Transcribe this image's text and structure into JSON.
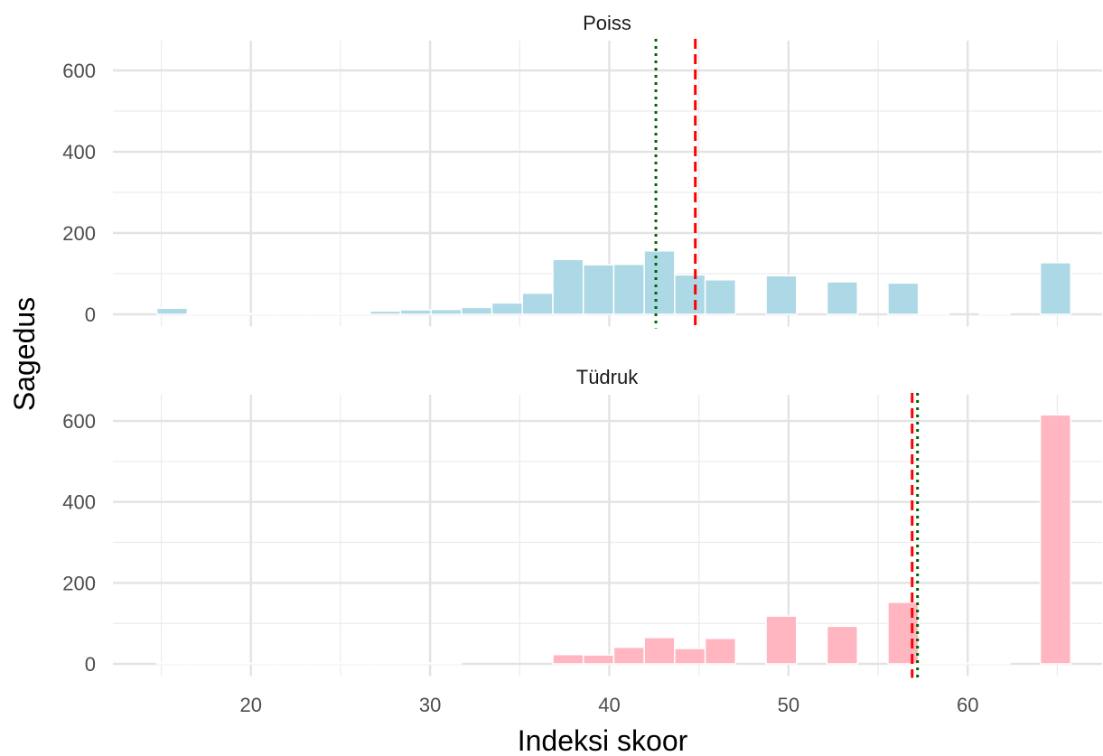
{
  "chart_data": {
    "type": "bar",
    "xlabel": "Indeksi skoor",
    "ylabel": "Sagedus",
    "xlim": [
      12.3,
      67.5
    ],
    "ylim": [
      -30,
      650
    ],
    "x_ticks": [
      20,
      30,
      40,
      50,
      60
    ],
    "y_ticks": [
      0,
      200,
      400,
      600
    ],
    "grid": true,
    "legend": "none",
    "bin_width": 1.7,
    "panels": [
      {
        "title": "Poiss",
        "color": "#ADD8E6",
        "mean_line": {
          "x": 44.8,
          "color": "#FF0000",
          "style": "dashed"
        },
        "median_line": {
          "x": 42.6,
          "color": "#006400",
          "style": "dotted"
        },
        "bins": [
          {
            "x": 15.6,
            "count": 15
          },
          {
            "x": 17.3,
            "count": 2
          },
          {
            "x": 19.0,
            "count": 1
          },
          {
            "x": 20.7,
            "count": 1
          },
          {
            "x": 22.4,
            "count": 1
          },
          {
            "x": 24.1,
            "count": 1
          },
          {
            "x": 25.8,
            "count": 2
          },
          {
            "x": 27.5,
            "count": 8
          },
          {
            "x": 29.2,
            "count": 11
          },
          {
            "x": 30.9,
            "count": 12
          },
          {
            "x": 32.6,
            "count": 17
          },
          {
            "x": 34.3,
            "count": 28
          },
          {
            "x": 36.0,
            "count": 52
          },
          {
            "x": 37.7,
            "count": 135
          },
          {
            "x": 39.4,
            "count": 122
          },
          {
            "x": 41.1,
            "count": 123
          },
          {
            "x": 42.8,
            "count": 156
          },
          {
            "x": 44.5,
            "count": 97
          },
          {
            "x": 46.2,
            "count": 85
          },
          {
            "x": 49.6,
            "count": 95
          },
          {
            "x": 53.0,
            "count": 80
          },
          {
            "x": 56.4,
            "count": 77
          },
          {
            "x": 58.1,
            "count": 1
          },
          {
            "x": 61.5,
            "count": 1
          },
          {
            "x": 64.9,
            "count": 127
          }
        ]
      },
      {
        "title": "Tüdruk",
        "color": "#FFB6C1",
        "mean_line": {
          "x": 56.9,
          "color": "#FF0000",
          "style": "dashed"
        },
        "median_line": {
          "x": 57.2,
          "color": "#006400",
          "style": "dotted"
        },
        "bins": [
          {
            "x": 15.6,
            "count": 2
          },
          {
            "x": 17.3,
            "count": 1
          },
          {
            "x": 19.0,
            "count": 1
          },
          {
            "x": 20.7,
            "count": 1
          },
          {
            "x": 22.4,
            "count": 1
          },
          {
            "x": 24.1,
            "count": 1
          },
          {
            "x": 25.8,
            "count": 1
          },
          {
            "x": 27.5,
            "count": 1
          },
          {
            "x": 29.2,
            "count": 1
          },
          {
            "x": 30.9,
            "count": 1
          },
          {
            "x": 37.7,
            "count": 23
          },
          {
            "x": 39.4,
            "count": 22
          },
          {
            "x": 41.1,
            "count": 41
          },
          {
            "x": 42.8,
            "count": 65
          },
          {
            "x": 44.5,
            "count": 38
          },
          {
            "x": 46.2,
            "count": 63
          },
          {
            "x": 49.6,
            "count": 118
          },
          {
            "x": 53.0,
            "count": 93
          },
          {
            "x": 56.4,
            "count": 152
          },
          {
            "x": 58.1,
            "count": 1
          },
          {
            "x": 59.8,
            "count": 1
          },
          {
            "x": 61.5,
            "count": 1
          },
          {
            "x": 64.9,
            "count": 615
          }
        ]
      }
    ]
  }
}
